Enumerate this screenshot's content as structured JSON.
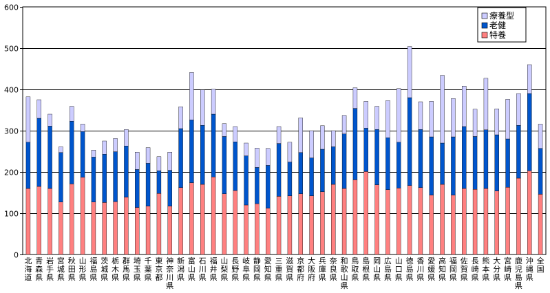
{
  "chart_data": {
    "type": "bar",
    "stacked": true,
    "title": "",
    "xlabel": "",
    "ylabel": "",
    "ylim": [
      0,
      600
    ],
    "yticks": [
      0,
      100,
      200,
      300,
      400,
      500,
      600
    ],
    "grid": true,
    "legend_position": "top-right",
    "categories": [
      "北海道",
      "青森県",
      "岩手県",
      "宮城県",
      "秋田県",
      "山形県",
      "福島県",
      "茨城県",
      "栃木県",
      "群馬県",
      "埼玉県",
      "千葉県",
      "東京都",
      "神奈川県",
      "新潟県",
      "富山県",
      "石川県",
      "福井県",
      "山梨県",
      "長野県",
      "岐阜県",
      "静岡県",
      "愛知県",
      "三重県",
      "滋賀県",
      "京都府",
      "大阪府",
      "兵庫県",
      "奈良県",
      "和歌山県",
      "鳥取県",
      "島根県",
      "岡山県",
      "広島県",
      "山口県",
      "徳島県",
      "香川県",
      "愛媛県",
      "高知県",
      "福岡県",
      "佐賀県",
      "長崎県",
      "熊本県",
      "大分県",
      "宮崎県",
      "鹿児島県",
      "沖縄県",
      "全国"
    ],
    "series": [
      {
        "name": "特養",
        "color": "#ff8080",
        "values": [
          160,
          165,
          160,
          127,
          171,
          187,
          127,
          126,
          128,
          139,
          114,
          117,
          148,
          117,
          162,
          174,
          170,
          188,
          147,
          155,
          120,
          123,
          112,
          141,
          142,
          147,
          142,
          152,
          170,
          160,
          181,
          201,
          169,
          157,
          161,
          167,
          162,
          144,
          170,
          144,
          160,
          158,
          160,
          154,
          163,
          185,
          203,
          146
        ]
      },
      {
        "name": "老健",
        "color": "#0055cc",
        "values": [
          112,
          165,
          151,
          120,
          152,
          111,
          109,
          117,
          121,
          124,
          92,
          104,
          55,
          87,
          143,
          152,
          143,
          152,
          139,
          118,
          119,
          88,
          104,
          128,
          82,
          100,
          92,
          103,
          91,
          132,
          173,
          105,
          134,
          126,
          111,
          213,
          141,
          141,
          100,
          141,
          150,
          128,
          142,
          136,
          117,
          128,
          187,
          111
        ]
      },
      {
        "name": "療養型",
        "color": "#ccccff",
        "values": [
          110,
          45,
          29,
          14,
          36,
          18,
          17,
          32,
          32,
          40,
          42,
          38,
          34,
          44,
          53,
          115,
          86,
          61,
          31,
          37,
          31,
          47,
          41,
          41,
          48,
          84,
          66,
          57,
          39,
          45,
          50,
          65,
          56,
          90,
          130,
          124,
          67,
          86,
          164,
          93,
          98,
          66,
          125,
          63,
          96,
          77,
          70,
          59
        ]
      }
    ]
  }
}
